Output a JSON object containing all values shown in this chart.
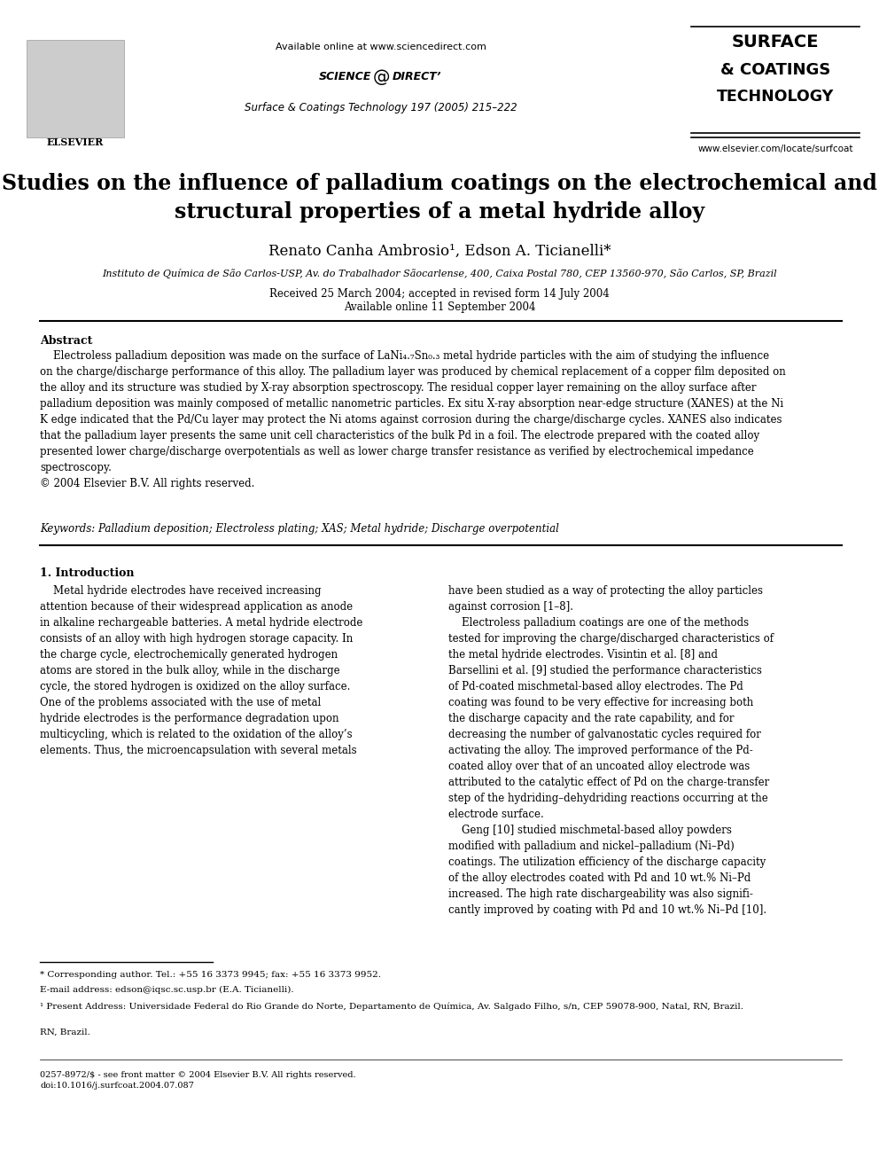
{
  "bg_color": "#ffffff",
  "header": {
    "available_online": "Available online at www.sciencedirect.com",
    "journal_info": "Surface & Coatings Technology 197 (2005) 215–222",
    "website": "www.elsevier.com/locate/surfcoat",
    "journal_name_line1": "SURFACE",
    "journal_name_line2": "& COATINGS",
    "journal_name_line3": "TECHNOLOGY"
  },
  "title": "Studies on the influence of palladium coatings on the electrochemical and\nstructural properties of a metal hydride alloy",
  "authors": "Renato Canha Ambrosio¹, Edson A. Ticianelli*",
  "affiliation": "Instituto de Química de São Carlos-USP, Av. do Trabalhador Sãocarlense, 400, Caixa Postal 780, CEP 13560-970, São Carlos, SP, Brazil",
  "received": "Received 25 March 2004; accepted in revised form 14 July 2004",
  "available": "Available online 11 September 2004",
  "abstract_title": "Abstract",
  "abstract_text": "Electroless palladium deposition was made on the surface of LaNi₄.₇Sn₀.₃ metal hydride particles with the aim of studying the influence on the charge/discharge performance of this alloy. The palladium layer was produced by chemical replacement of a copper film deposited on the alloy and its structure was studied by X-ray absorption spectroscopy. The residual copper layer remaining on the alloy surface after palladium deposition was mainly composed of metallic nanometric particles. Ex situ X-ray absorption near-edge structure (XANES) at the Ni K edge indicated that the Pd/Cu layer may protect the Ni atoms against corrosion during the charge/discharge cycles. XANES also indicates that the palladium layer presents the same unit cell characteristics of the bulk Pd in a foil. The electrode prepared with the coated alloy presented lower charge/discharge overpotentials as well as lower charge transfer resistance as verified by electrochemical impedance spectroscopy.\n© 2004 Elsevier B.V. All rights reserved.",
  "keywords": "Keywords: Palladium deposition; Electroless plating; XAS; Metal hydride; Discharge overpotential",
  "section1_title": "1. Introduction",
  "col1_text": "Metal hydride electrodes have received increasing attention because of their widespread application as anode in alkaline rechargeable batteries. A metal hydride electrode consists of an alloy with high hydrogen storage capacity. In the charge cycle, electrochemically generated hydrogen atoms are stored in the bulk alloy, while in the discharge cycle, the stored hydrogen is oxidized on the alloy surface. One of the problems associated with the use of metal hydride electrodes is the performance degradation upon multicycling, which is related to the oxidation of the alloy’s elements. Thus, the microencapsulation with several metals",
  "col2_text": "have been studied as a way of protecting the alloy particles against corrosion [1–8].\n    Electroless palladium coatings are one of the methods tested for improving the charge/discharged characteristics of the metal hydride electrodes. Visintin et al. [8] and Barsellini et al. [9] studied the performance characteristics of Pd-coated mischmetal-based alloy electrodes. The Pd coating was found to be very effective for increasing both the discharge capacity and the rate capability, and for decreasing the number of galvanostatic cycles required for activating the alloy. The improved performance of the Pd-coated alloy over that of an uncoated alloy electrode was attributed to the catalytic effect of Pd on the charge-transfer step of the hydriding–dehydriding reactions occurring at the electrode surface.\n    Geng [10] studied mischmetal-based alloy powders modified with palladium and nickel–palladium (Ni–Pd) coatings. The utilization efficiency of the discharge capacity of the alloy electrodes coated with Pd and 10 wt.% Ni–Pd increased. The high rate dischargeability was also significantly improved by coating with Pd and 10 wt.% Ni–Pd [10].",
  "footnote_star": "* Corresponding author. Tel.: +55 16 3373 9945; fax: +55 16 3373 9952.",
  "footnote_email": "E-mail address: edson@iqsc.sc.usp.br (E.A. Ticianelli).",
  "footnote_1": "¹ Present Address: Universidade Federal do Rio Grande do Norte, Departamento de Química, Av. Salgado Filho, s/n, CEP 59078-900, Natal, RN, Brazil.",
  "issn": "0257-8972/$ - see front matter © 2004 Elsevier B.V. All rights reserved.",
  "doi": "doi:10.1016/j.surfcoat.2004.07.087"
}
